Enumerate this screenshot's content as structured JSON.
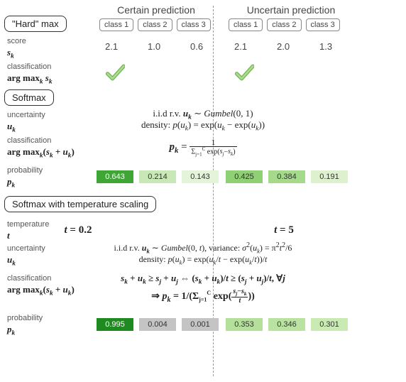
{
  "headers": {
    "certain": "Certain prediction",
    "uncertain": "Uncertain prediction"
  },
  "class_labels": [
    "class 1",
    "class 2",
    "class 3"
  ],
  "sections": {
    "hardmax": "\"Hard\" max",
    "softmax": "Softmax",
    "softmax_temp": "Softmax with temperature scaling"
  },
  "row_labels": {
    "score": "score",
    "score_sym": "s",
    "classification": "classification",
    "argmax_sk": "arg max",
    "uncertainty": "uncertainty",
    "u_sym": "u",
    "argmax_su": "arg max",
    "probability": "probability",
    "p_sym": "p",
    "temperature": "temperature",
    "t_sym": "t"
  },
  "scores": {
    "left": [
      "2.1",
      "1.0",
      "0.6"
    ],
    "right": [
      "2.1",
      "2.0",
      "1.3"
    ]
  },
  "softmax_formulas": {
    "iid": "i.i.d r.v. u_k ∼ Gumbel(0, 1)",
    "density": "density: p(u_k) = exp(u_k − exp(u_k))",
    "pk": "p_k = 1 / Σ exp(s_j − s_k)"
  },
  "softmax_probs": {
    "left": [
      {
        "val": "0.643",
        "bg": "#3fa635",
        "fg": "#ffffff"
      },
      {
        "val": "0.214",
        "bg": "#c8e9b6",
        "fg": "#333333"
      },
      {
        "val": "0.143",
        "bg": "#e4f4d9",
        "fg": "#333333"
      }
    ],
    "right": [
      {
        "val": "0.425",
        "bg": "#8fd074",
        "fg": "#333333"
      },
      {
        "val": "0.384",
        "bg": "#a4da8a",
        "fg": "#333333"
      },
      {
        "val": "0.191",
        "bg": "#ddf1ce",
        "fg": "#333333"
      }
    ]
  },
  "temp_vals": {
    "left": "t = 0.2",
    "right": "t = 5"
  },
  "temp_formulas": {
    "iid": "i.i.d r.v. u_k ∼ Gumbel(0, t), variance: σ²(u_k) = π²t²/6",
    "density": "density: p(u_k) = exp(u_k/t − exp(u_k/t))/t",
    "ineq": "s_k + u_k ≥ s_j + u_j ⇔ (s_k + u_k)/t ≥ (s_j + u_j)/t, ∀j",
    "pk": "⇒ p_k = 1/(Σ exp((s_j − s_k)/t))"
  },
  "temp_probs": {
    "left": [
      {
        "val": "0.995",
        "bg": "#1f8a1f",
        "fg": "#ffffff"
      },
      {
        "val": "0.004",
        "bg": "#c4c4c4",
        "fg": "#333333"
      },
      {
        "val": "0.001",
        "bg": "#c4c4c4",
        "fg": "#333333"
      }
    ],
    "right": [
      {
        "val": "0.353",
        "bg": "#b5e09b",
        "fg": "#333333"
      },
      {
        "val": "0.346",
        "bg": "#bae3a1",
        "fg": "#333333"
      },
      {
        "val": "0.301",
        "bg": "#c9eab3",
        "fg": "#333333"
      }
    ]
  },
  "layout": {
    "left_x": [
      142,
      202,
      262
    ],
    "right_x": [
      324,
      384,
      444
    ],
    "check_color": "#8fcf6f",
    "font_main": 12
  }
}
